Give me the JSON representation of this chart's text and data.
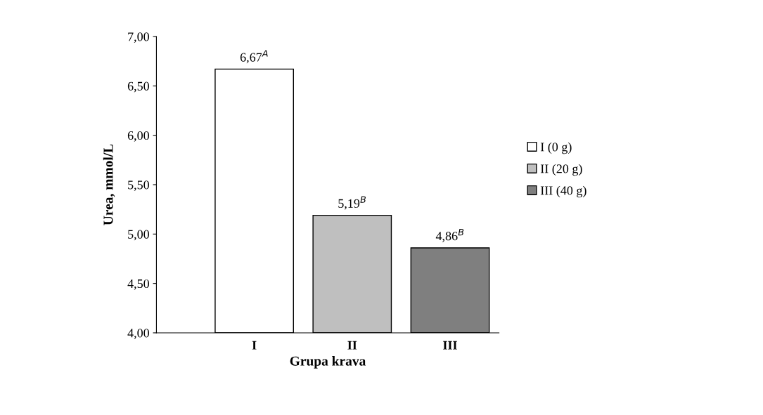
{
  "chart_data": {
    "type": "bar",
    "stacked": true,
    "xlabel": "Grupa krava",
    "ylabel": "Urea, mmol/L",
    "categories": [
      "I",
      "II",
      "III"
    ],
    "series": [
      {
        "name": "I (0 g)",
        "color": "#ffffff",
        "values": [
          6.67,
          null,
          null
        ],
        "value_labels": [
          "6,67$^{A}$",
          null,
          null
        ]
      },
      {
        "name": "II (20 g)",
        "color": "#bfbfbf",
        "values": [
          null,
          5.19,
          null
        ],
        "value_labels": [
          null,
          "5,19$^{B}$",
          null
        ]
      },
      {
        "name": "III (40 g)",
        "color": "#7f7f7f",
        "values": [
          null,
          null,
          4.86
        ],
        "value_labels": [
          null,
          null,
          "4,86$^{B}$"
        ]
      }
    ],
    "ylim": [
      4,
      7
    ],
    "yticks": [
      {
        "value": 4,
        "label": "4,00"
      },
      {
        "value": 4.5,
        "label": "4,50"
      },
      {
        "value": 5,
        "label": "5,00"
      },
      {
        "value": 5.5,
        "label": "5,50"
      },
      {
        "value": 6,
        "label": "6,00"
      },
      {
        "value": 6.5,
        "label": "6,50"
      },
      {
        "value": 7,
        "label": "7,00"
      }
    ],
    "grid": false,
    "legend": "right"
  }
}
